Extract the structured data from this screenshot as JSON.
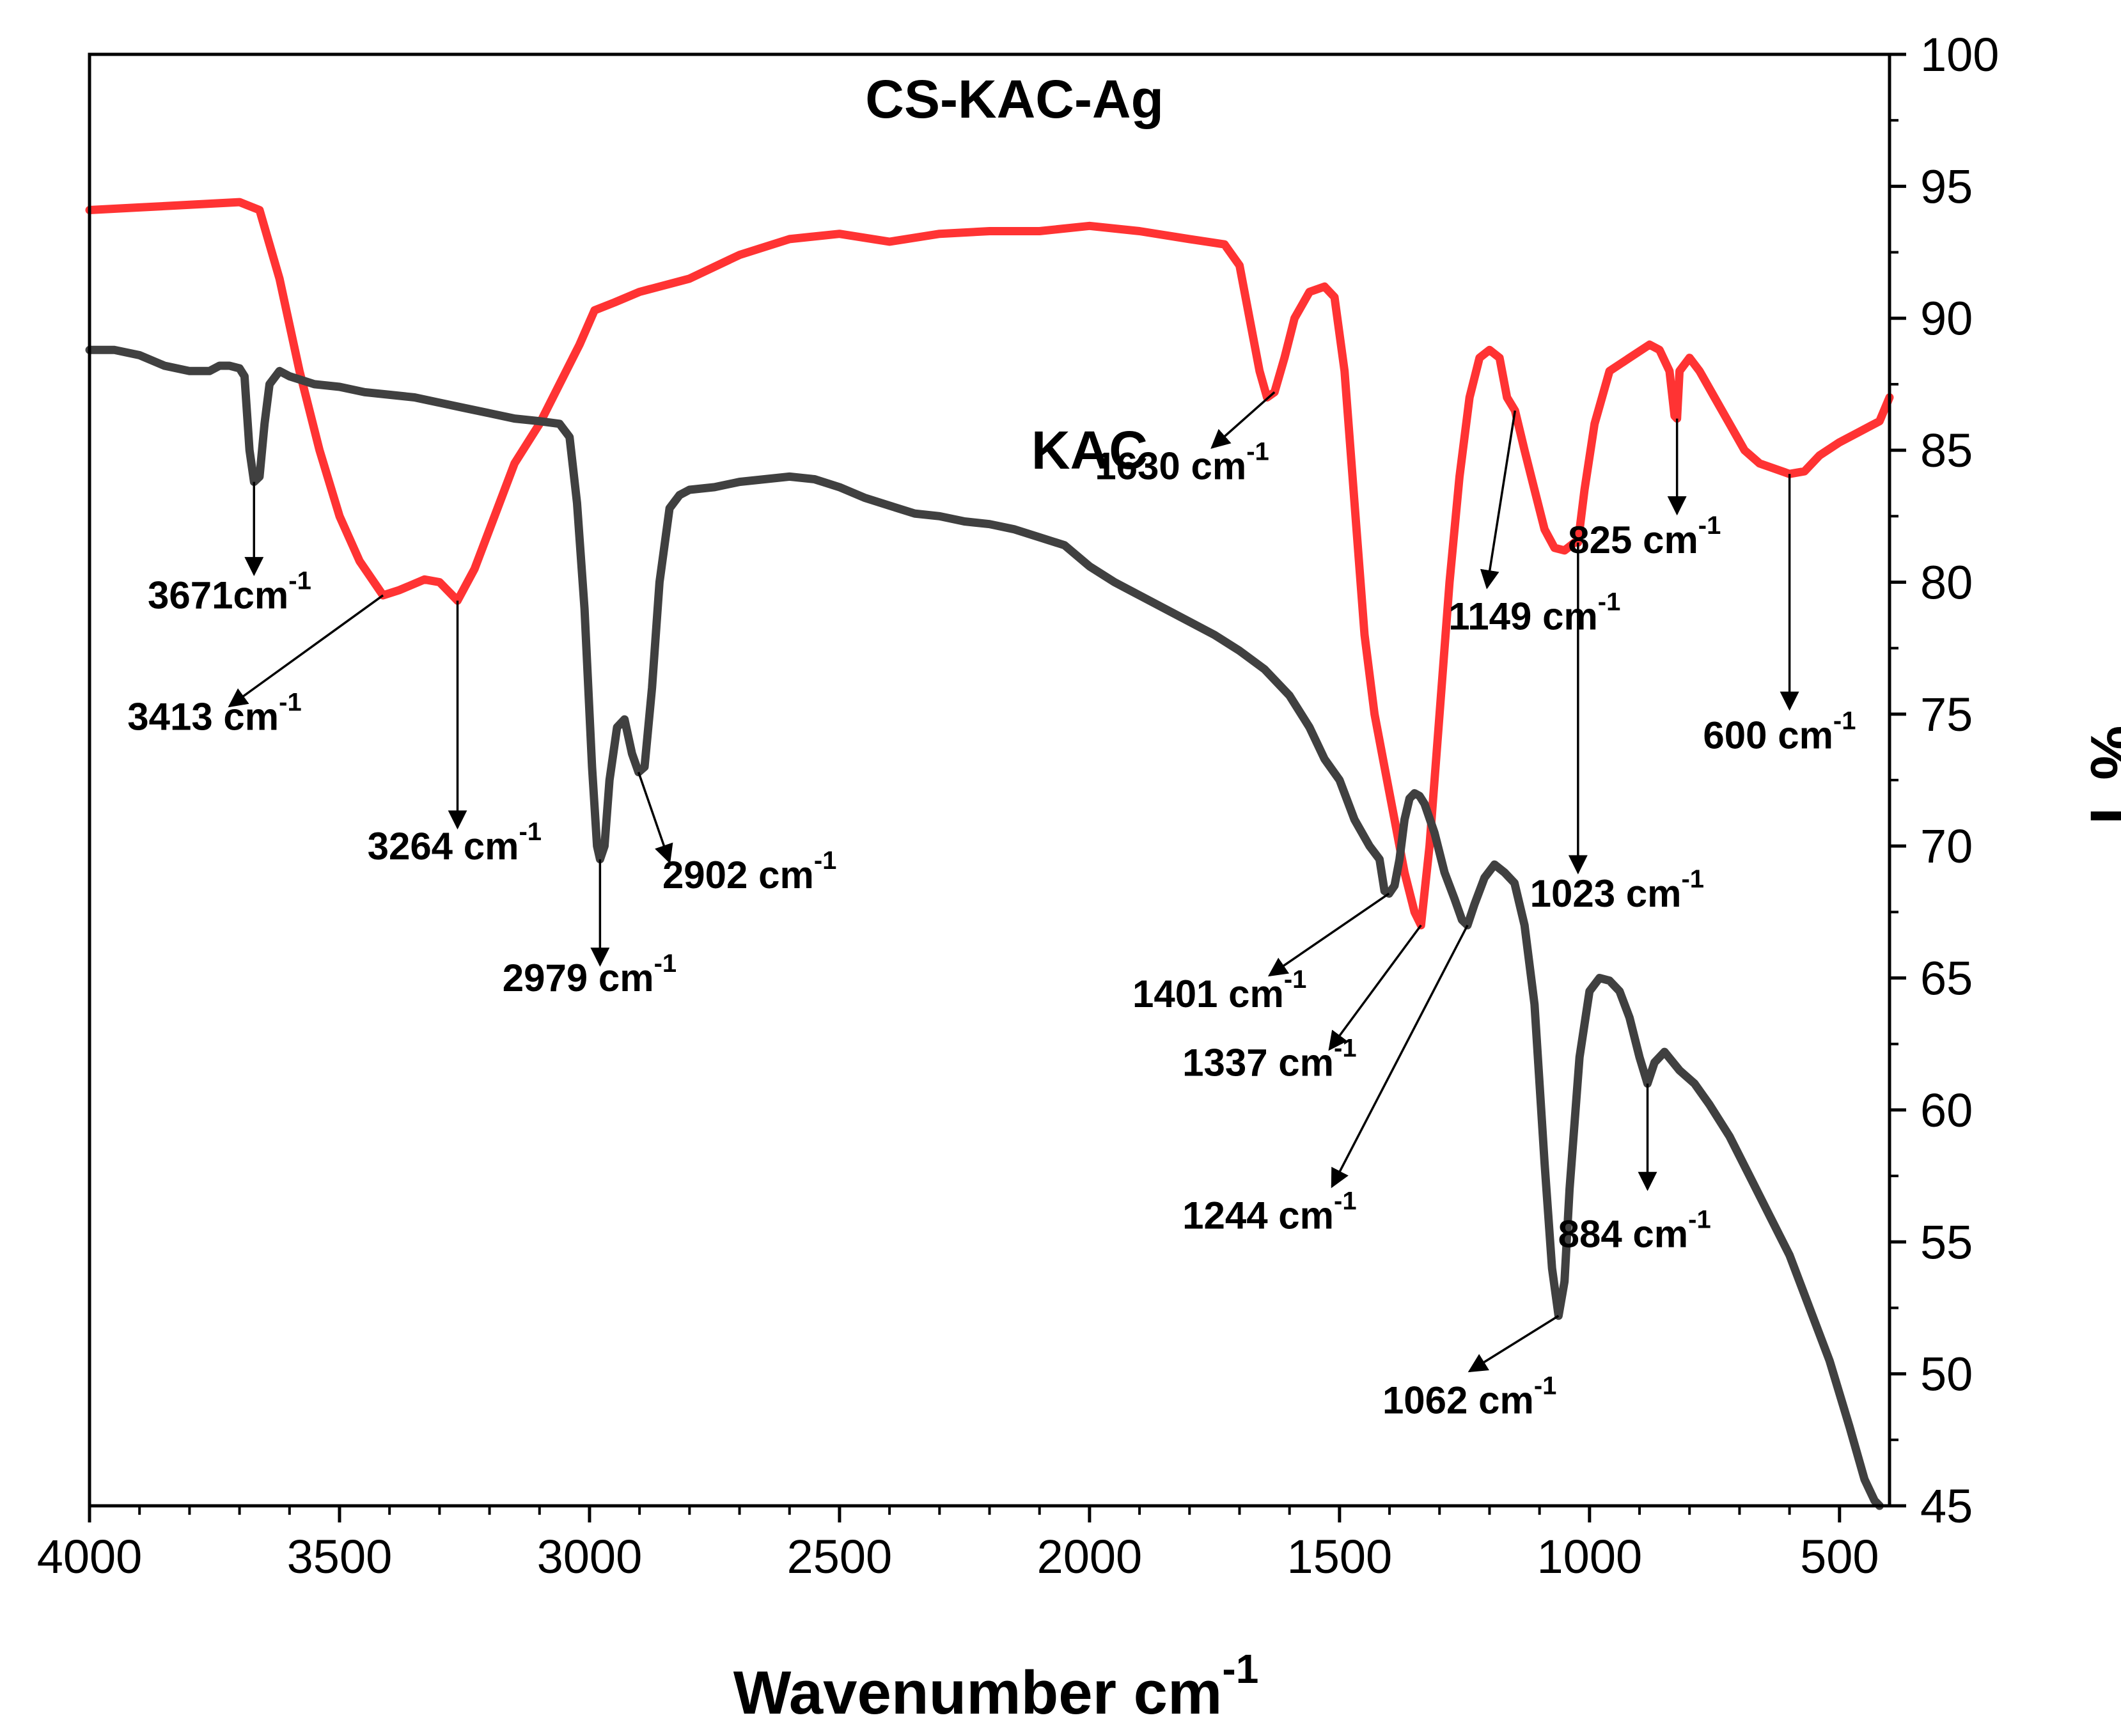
{
  "chart_data": {
    "type": "line",
    "title": "",
    "xlabel": "Wavenumber cm",
    "xlabel_sup": "-1",
    "ylabel": "% T",
    "xlim": [
      4000,
      400
    ],
    "ylim": [
      45,
      100
    ],
    "x_ticks": [
      4000,
      3500,
      3000,
      2500,
      2000,
      1500,
      1000,
      500
    ],
    "y_ticks": [
      45,
      50,
      55,
      60,
      65,
      70,
      75,
      80,
      85,
      90,
      95,
      100
    ],
    "grid": false,
    "legend": "none",
    "y_axis_side": "right",
    "series": [
      {
        "name": "CS-KAC-Ag",
        "color": "#ff3333",
        "points": [
          [
            4000,
            94.1
          ],
          [
            3900,
            94.2
          ],
          [
            3800,
            94.3
          ],
          [
            3700,
            94.4
          ],
          [
            3660,
            94.1
          ],
          [
            3620,
            91.5
          ],
          [
            3580,
            88
          ],
          [
            3540,
            85
          ],
          [
            3500,
            82.5
          ],
          [
            3460,
            80.8
          ],
          [
            3413,
            79.5
          ],
          [
            3380,
            79.7
          ],
          [
            3330,
            80.1
          ],
          [
            3300,
            80
          ],
          [
            3264,
            79.3
          ],
          [
            3230,
            80.5
          ],
          [
            3190,
            82.5
          ],
          [
            3150,
            84.5
          ],
          [
            3100,
            86
          ],
          [
            3060,
            87.5
          ],
          [
            3020,
            89
          ],
          [
            2990,
            90.3
          ],
          [
            2950,
            90.6
          ],
          [
            2900,
            91
          ],
          [
            2800,
            91.5
          ],
          [
            2700,
            92.4
          ],
          [
            2600,
            93
          ],
          [
            2500,
            93.2
          ],
          [
            2400,
            92.9
          ],
          [
            2300,
            93.2
          ],
          [
            2200,
            93.3
          ],
          [
            2100,
            93.3
          ],
          [
            2000,
            93.5
          ],
          [
            1900,
            93.3
          ],
          [
            1800,
            93
          ],
          [
            1730,
            92.8
          ],
          [
            1700,
            92
          ],
          [
            1680,
            90
          ],
          [
            1660,
            88
          ],
          [
            1645,
            87
          ],
          [
            1630,
            87.2
          ],
          [
            1610,
            88.5
          ],
          [
            1590,
            90
          ],
          [
            1560,
            91
          ],
          [
            1530,
            91.2
          ],
          [
            1510,
            90.8
          ],
          [
            1490,
            88
          ],
          [
            1470,
            83
          ],
          [
            1450,
            78
          ],
          [
            1430,
            75
          ],
          [
            1410,
            73
          ],
          [
            1390,
            71
          ],
          [
            1370,
            69
          ],
          [
            1350,
            67.5
          ],
          [
            1337,
            67
          ],
          [
            1320,
            70
          ],
          [
            1300,
            75
          ],
          [
            1280,
            80
          ],
          [
            1260,
            84
          ],
          [
            1240,
            87
          ],
          [
            1220,
            88.5
          ],
          [
            1200,
            88.8
          ],
          [
            1180,
            88.5
          ],
          [
            1165,
            87
          ],
          [
            1149,
            86.5
          ],
          [
            1130,
            85
          ],
          [
            1110,
            83.5
          ],
          [
            1090,
            82
          ],
          [
            1070,
            81.3
          ],
          [
            1050,
            81.2
          ],
          [
            1030,
            81.5
          ],
          [
            1023,
            81.5
          ],
          [
            1010,
            83.5
          ],
          [
            990,
            86
          ],
          [
            960,
            88
          ],
          [
            920,
            88.5
          ],
          [
            880,
            89
          ],
          [
            860,
            88.8
          ],
          [
            840,
            88
          ],
          [
            830,
            86.3
          ],
          [
            825,
            86.2
          ],
          [
            820,
            88
          ],
          [
            800,
            88.5
          ],
          [
            780,
            88
          ],
          [
            750,
            87
          ],
          [
            720,
            86
          ],
          [
            690,
            85
          ],
          [
            660,
            84.5
          ],
          [
            630,
            84.3
          ],
          [
            600,
            84.1
          ],
          [
            570,
            84.2
          ],
          [
            540,
            84.8
          ],
          [
            500,
            85.3
          ],
          [
            460,
            85.7
          ],
          [
            420,
            86.1
          ],
          [
            400,
            87
          ]
        ]
      },
      {
        "name": "KAC",
        "color": "#404040",
        "points": [
          [
            4000,
            88.8
          ],
          [
            3950,
            88.8
          ],
          [
            3900,
            88.6
          ],
          [
            3850,
            88.2
          ],
          [
            3800,
            88
          ],
          [
            3760,
            88
          ],
          [
            3740,
            88.2
          ],
          [
            3720,
            88.2
          ],
          [
            3700,
            88.1
          ],
          [
            3690,
            87.8
          ],
          [
            3680,
            85
          ],
          [
            3671,
            83.8
          ],
          [
            3660,
            84
          ],
          [
            3650,
            86
          ],
          [
            3640,
            87.5
          ],
          [
            3620,
            88
          ],
          [
            3600,
            87.8
          ],
          [
            3550,
            87.5
          ],
          [
            3500,
            87.4
          ],
          [
            3450,
            87.2
          ],
          [
            3400,
            87.1
          ],
          [
            3350,
            87
          ],
          [
            3300,
            86.8
          ],
          [
            3250,
            86.6
          ],
          [
            3200,
            86.4
          ],
          [
            3150,
            86.2
          ],
          [
            3100,
            86.1
          ],
          [
            3060,
            86
          ],
          [
            3040,
            85.5
          ],
          [
            3025,
            83
          ],
          [
            3010,
            79
          ],
          [
            2995,
            73
          ],
          [
            2985,
            70
          ],
          [
            2979,
            69.5
          ],
          [
            2970,
            70
          ],
          [
            2960,
            72.5
          ],
          [
            2945,
            74.5
          ],
          [
            2930,
            74.8
          ],
          [
            2915,
            73.5
          ],
          [
            2902,
            72.8
          ],
          [
            2890,
            73
          ],
          [
            2875,
            76
          ],
          [
            2860,
            80
          ],
          [
            2840,
            82.8
          ],
          [
            2820,
            83.3
          ],
          [
            2800,
            83.5
          ],
          [
            2750,
            83.6
          ],
          [
            2700,
            83.8
          ],
          [
            2650,
            83.9
          ],
          [
            2600,
            84
          ],
          [
            2550,
            83.9
          ],
          [
            2500,
            83.6
          ],
          [
            2450,
            83.2
          ],
          [
            2400,
            82.9
          ],
          [
            2350,
            82.6
          ],
          [
            2300,
            82.5
          ],
          [
            2250,
            82.3
          ],
          [
            2200,
            82.2
          ],
          [
            2150,
            82
          ],
          [
            2100,
            81.7
          ],
          [
            2050,
            81.4
          ],
          [
            2000,
            80.6
          ],
          [
            1950,
            80
          ],
          [
            1900,
            79.5
          ],
          [
            1850,
            79
          ],
          [
            1800,
            78.5
          ],
          [
            1750,
            78
          ],
          [
            1700,
            77.4
          ],
          [
            1650,
            76.7
          ],
          [
            1600,
            75.7
          ],
          [
            1560,
            74.5
          ],
          [
            1530,
            73.3
          ],
          [
            1500,
            72.5
          ],
          [
            1470,
            71
          ],
          [
            1440,
            70
          ],
          [
            1420,
            69.5
          ],
          [
            1410,
            68.3
          ],
          [
            1401,
            68.2
          ],
          [
            1390,
            68.5
          ],
          [
            1380,
            69.5
          ],
          [
            1370,
            71
          ],
          [
            1360,
            71.8
          ],
          [
            1350,
            72
          ],
          [
            1340,
            71.9
          ],
          [
            1330,
            71.6
          ],
          [
            1310,
            70.5
          ],
          [
            1290,
            69
          ],
          [
            1270,
            68
          ],
          [
            1255,
            67.2
          ],
          [
            1244,
            67
          ],
          [
            1230,
            67.8
          ],
          [
            1210,
            68.8
          ],
          [
            1190,
            69.3
          ],
          [
            1170,
            69
          ],
          [
            1150,
            68.6
          ],
          [
            1130,
            67
          ],
          [
            1110,
            64
          ],
          [
            1090,
            58
          ],
          [
            1075,
            54
          ],
          [
            1062,
            52.2
          ],
          [
            1050,
            53.5
          ],
          [
            1040,
            57
          ],
          [
            1020,
            62
          ],
          [
            1000,
            64.5
          ],
          [
            980,
            65
          ],
          [
            960,
            64.9
          ],
          [
            940,
            64.5
          ],
          [
            920,
            63.5
          ],
          [
            900,
            62
          ],
          [
            884,
            61
          ],
          [
            870,
            61.8
          ],
          [
            850,
            62.2
          ],
          [
            820,
            61.5
          ],
          [
            790,
            61
          ],
          [
            760,
            60.2
          ],
          [
            720,
            59
          ],
          [
            680,
            57.5
          ],
          [
            640,
            56
          ],
          [
            600,
            54.5
          ],
          [
            560,
            52.5
          ],
          [
            520,
            50.5
          ],
          [
            480,
            48
          ],
          [
            450,
            46
          ],
          [
            430,
            45.2
          ],
          [
            420,
            45
          ]
        ]
      }
    ],
    "series_labels": [
      {
        "text": "CS-KAC-Ag",
        "x": 2150,
        "y": 97.6
      },
      {
        "text": "KAC",
        "x": 2000,
        "y": 84.3
      }
    ],
    "annotations": [
      {
        "text": "3671cm",
        "sup": "-1",
        "from": [
          3671,
          83.8
        ],
        "to": [
          3671,
          80.3
        ],
        "label": [
          3720,
          79
        ],
        "anchor": "middle"
      },
      {
        "text": "3413 cm",
        "sup": "-1",
        "from": [
          3413,
          79.5
        ],
        "to": [
          3720,
          75.3
        ],
        "label": [
          3750,
          74.4
        ],
        "anchor": "middle"
      },
      {
        "text": "3264 cm",
        "sup": "-1",
        "from": [
          3264,
          79.3
        ],
        "to": [
          3264,
          70.7
        ],
        "label": [
          3270,
          69.5
        ],
        "anchor": "middle"
      },
      {
        "text": "2979 cm",
        "sup": "-1",
        "from": [
          2979,
          69.5
        ],
        "to": [
          2979,
          65.5
        ],
        "label": [
          3000,
          64.5
        ],
        "anchor": "middle"
      },
      {
        "text": "2902 cm",
        "sup": "-1",
        "from": [
          2902,
          72.8
        ],
        "to": [
          2840,
          69.4
        ],
        "label": [
          2680,
          68.4
        ],
        "anchor": "middle"
      },
      {
        "text": "1630 cm",
        "sup": "-1",
        "from": [
          1630,
          87.2
        ],
        "to": [
          1755,
          85.1
        ],
        "label": [
          1815,
          83.9
        ],
        "anchor": "middle"
      },
      {
        "text": "1401 cm",
        "sup": "-1",
        "from": [
          1401,
          68.2
        ],
        "to": [
          1640,
          65.1
        ],
        "label": [
          1740,
          63.9
        ],
        "anchor": "middle"
      },
      {
        "text": "1337 cm",
        "sup": "-1",
        "from": [
          1337,
          67
        ],
        "to": [
          1520,
          62.3
        ],
        "label": [
          1640,
          61.3
        ],
        "anchor": "middle"
      },
      {
        "text": "1244 cm",
        "sup": "-1",
        "from": [
          1244,
          67
        ],
        "to": [
          1515,
          57.1
        ],
        "label": [
          1640,
          55.5
        ],
        "anchor": "middle"
      },
      {
        "text": "1149 cm",
        "sup": "-1",
        "from": [
          1149,
          86.5
        ],
        "to": [
          1205,
          79.8
        ],
        "label": [
          1110,
          78.2
        ],
        "anchor": "middle"
      },
      {
        "text": "1023 cm",
        "sup": "-1",
        "from": [
          1023,
          81.5
        ],
        "to": [
          1023,
          69
        ],
        "label": [
          945,
          67.7
        ],
        "anchor": "middle"
      },
      {
        "text": "825 cm",
        "sup": "-1",
        "from": [
          825,
          86.2
        ],
        "to": [
          825,
          82.6
        ],
        "label": [
          890,
          81.1
        ],
        "anchor": "middle"
      },
      {
        "text": "600 cm",
        "sup": "-1",
        "from": [
          600,
          84.1
        ],
        "to": [
          600,
          75.2
        ],
        "label": [
          620,
          73.7
        ],
        "anchor": "middle"
      },
      {
        "text": "884 cm",
        "sup": "-1",
        "from": [
          884,
          61
        ],
        "to": [
          884,
          57
        ],
        "label": [
          910,
          54.8
        ],
        "anchor": "middle"
      },
      {
        "text": "1062 cm",
        "sup": "-1",
        "from": [
          1062,
          52.2
        ],
        "to": [
          1240,
          50.1
        ],
        "label": [
          1240,
          48.5
        ],
        "anchor": "middle"
      }
    ]
  }
}
